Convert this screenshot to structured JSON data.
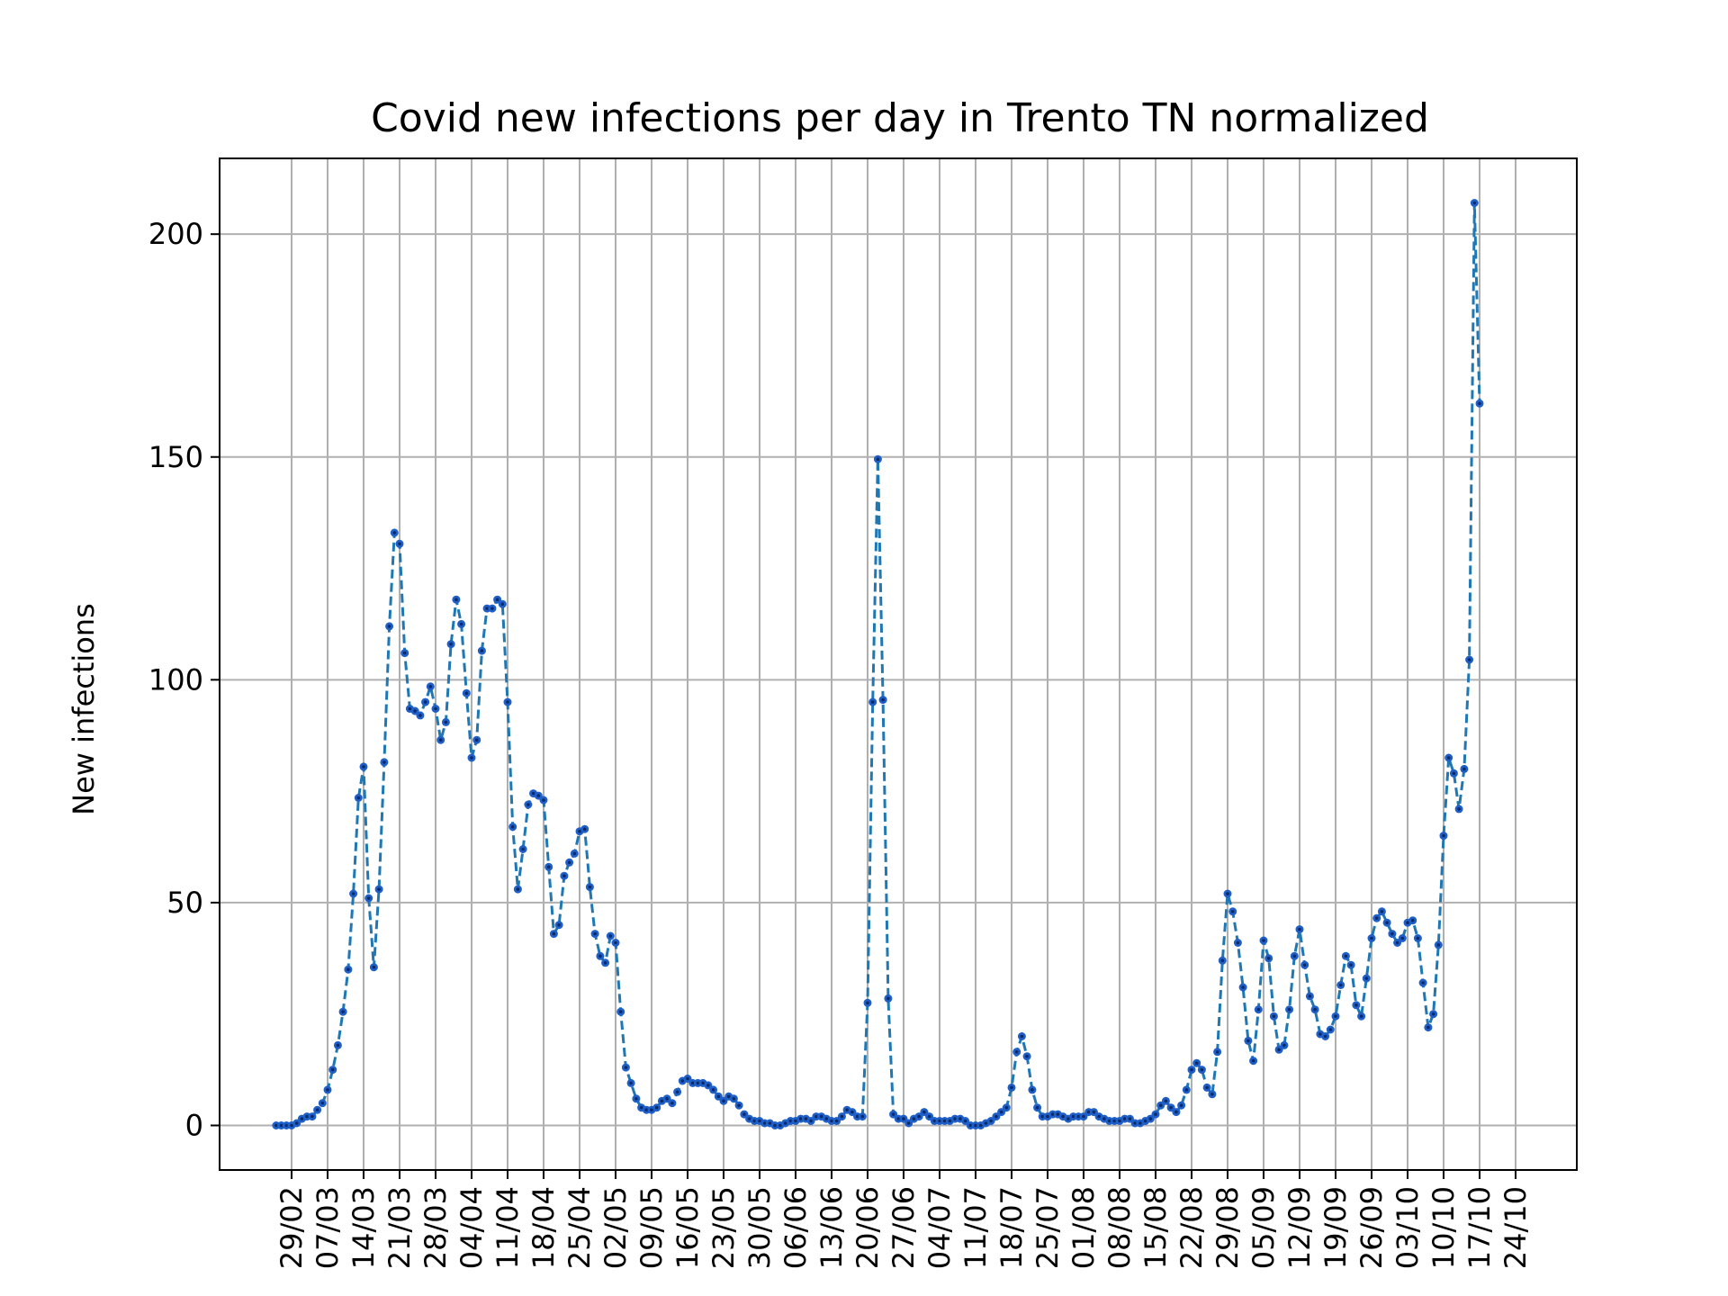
{
  "chart_data": {
    "type": "line",
    "title": "Covid new infections per day in Trento TN normalized",
    "xlabel": "",
    "ylabel": "New infections",
    "x_tick_labels": [
      "29/02",
      "07/03",
      "14/03",
      "21/03",
      "28/03",
      "04/04",
      "11/04",
      "18/04",
      "25/04",
      "02/05",
      "09/05",
      "16/05",
      "23/05",
      "30/05",
      "06/06",
      "13/06",
      "20/06",
      "27/06",
      "04/07",
      "11/07",
      "18/07",
      "25/07",
      "01/08",
      "08/08",
      "15/08",
      "22/08",
      "29/08",
      "05/09",
      "12/09",
      "19/09",
      "26/09",
      "03/10",
      "10/10",
      "17/10",
      "24/10"
    ],
    "y_ticks": [
      0,
      50,
      100,
      150,
      200
    ],
    "ylim": [
      -10,
      217
    ],
    "grid": true,
    "colors": {
      "line": "#1f77b4",
      "marker": "#1f5fc8",
      "marker_center": "#0a2a6a"
    },
    "series": [
      {
        "start_day_offset": -3,
        "values": [
          0,
          0,
          0,
          0,
          0.5,
          1.5,
          2,
          2,
          3.5,
          5,
          8,
          12.5,
          18,
          25.5,
          35,
          52,
          73.5,
          80.5,
          51,
          35.5,
          53,
          81.5,
          112,
          133,
          130.5,
          106,
          93.5,
          93,
          92,
          95,
          98.5,
          93.5,
          86.5,
          90.5,
          108,
          118,
          112.5,
          97,
          82.5,
          86.5,
          106.5,
          116,
          116,
          118,
          117,
          95,
          67,
          53,
          62,
          72,
          74.5,
          74,
          73,
          58,
          43,
          45,
          56,
          59,
          61,
          66,
          66.5,
          53.5,
          43,
          38,
          36.5,
          42.5,
          41,
          25.5,
          13,
          9.5,
          6,
          4,
          3.5,
          3.5,
          4,
          5.5,
          6,
          5,
          7.5,
          10,
          10.5,
          9.5,
          9.5,
          9.5,
          9,
          8,
          6.5,
          5.5,
          6.5,
          6,
          4.5,
          2.5,
          1.5,
          1,
          1,
          0.5,
          0.5,
          0,
          0,
          0.5,
          1,
          1,
          1.5,
          1.5,
          1,
          2,
          2,
          1.5,
          1,
          1,
          2,
          3.5,
          3,
          2,
          2,
          27.5,
          95,
          149.5,
          95.5,
          28.5,
          2.5,
          1.5,
          1.5,
          0.5,
          1.5,
          2,
          3,
          2,
          1,
          1,
          1,
          1,
          1.5,
          1.5,
          1,
          0,
          0,
          0,
          0.5,
          1,
          2,
          3,
          4,
          8.5,
          16.5,
          20,
          15.5,
          8,
          4,
          2,
          2,
          2.5,
          2.5,
          2,
          1.5,
          2,
          2,
          2,
          3,
          3,
          2,
          1.5,
          1,
          1,
          1,
          1.5,
          1.5,
          0.5,
          0.5,
          1,
          1.5,
          2.5,
          4.5,
          5.5,
          4,
          3,
          4.5,
          8,
          12.5,
          14,
          12.5,
          8.5,
          7,
          16.5,
          37,
          52,
          48,
          41,
          31,
          19,
          14.5,
          26,
          41.5,
          37.5,
          24.5,
          17,
          18,
          26,
          38,
          44,
          36,
          29,
          26,
          20.5,
          20,
          21.5,
          24.5,
          31.5,
          38,
          36,
          27,
          24.5,
          33,
          42,
          46.5,
          48,
          45.5,
          43,
          41,
          42,
          45.5,
          46,
          42,
          32,
          22,
          25,
          40.5,
          65,
          82.5,
          79,
          71,
          80,
          104.5,
          207,
          162
        ]
      }
    ]
  }
}
